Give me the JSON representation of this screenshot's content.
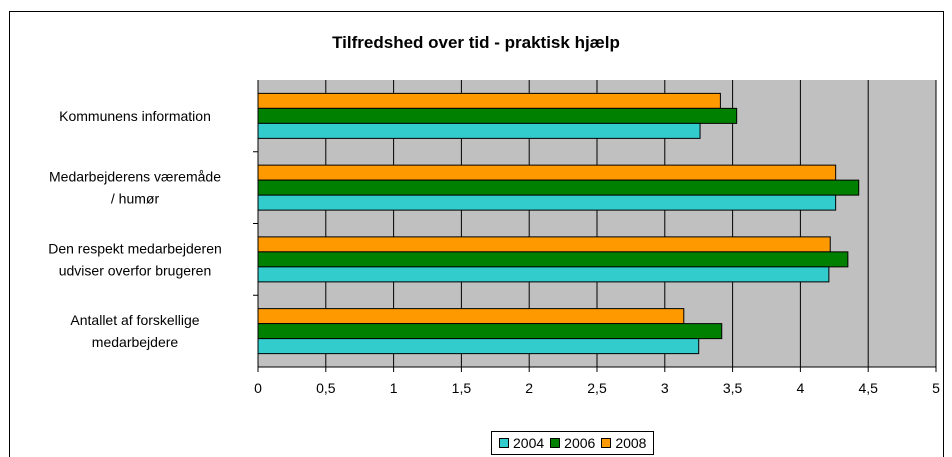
{
  "chart_data": {
    "type": "bar",
    "orientation": "horizontal",
    "title": "Tilfredshed over tid - praktisk hjælp",
    "categories": [
      [
        "Kommunens information"
      ],
      [
        "Medarbejderens væremåde",
        "/ humør"
      ],
      [
        "Den respekt medarbejderen",
        "udviser overfor brugeren"
      ],
      [
        "Antallet af forskellige",
        "medarbejdere"
      ]
    ],
    "series": [
      {
        "name": "2004",
        "color": "#33CCCC",
        "values": [
          3.26,
          4.26,
          4.21,
          3.25
        ]
      },
      {
        "name": "2006",
        "color": "#008000",
        "values": [
          3.53,
          4.43,
          4.35,
          3.42
        ]
      },
      {
        "name": "2008",
        "color": "#FF9900",
        "values": [
          3.41,
          4.26,
          4.22,
          3.14
        ]
      }
    ],
    "xlim": [
      0,
      5
    ],
    "xticks": [
      "0",
      "0,5",
      "1",
      "1,5",
      "2",
      "2,5",
      "3",
      "3,5",
      "4",
      "4,5",
      "5"
    ],
    "grid": true,
    "legend_position": "bottom"
  }
}
